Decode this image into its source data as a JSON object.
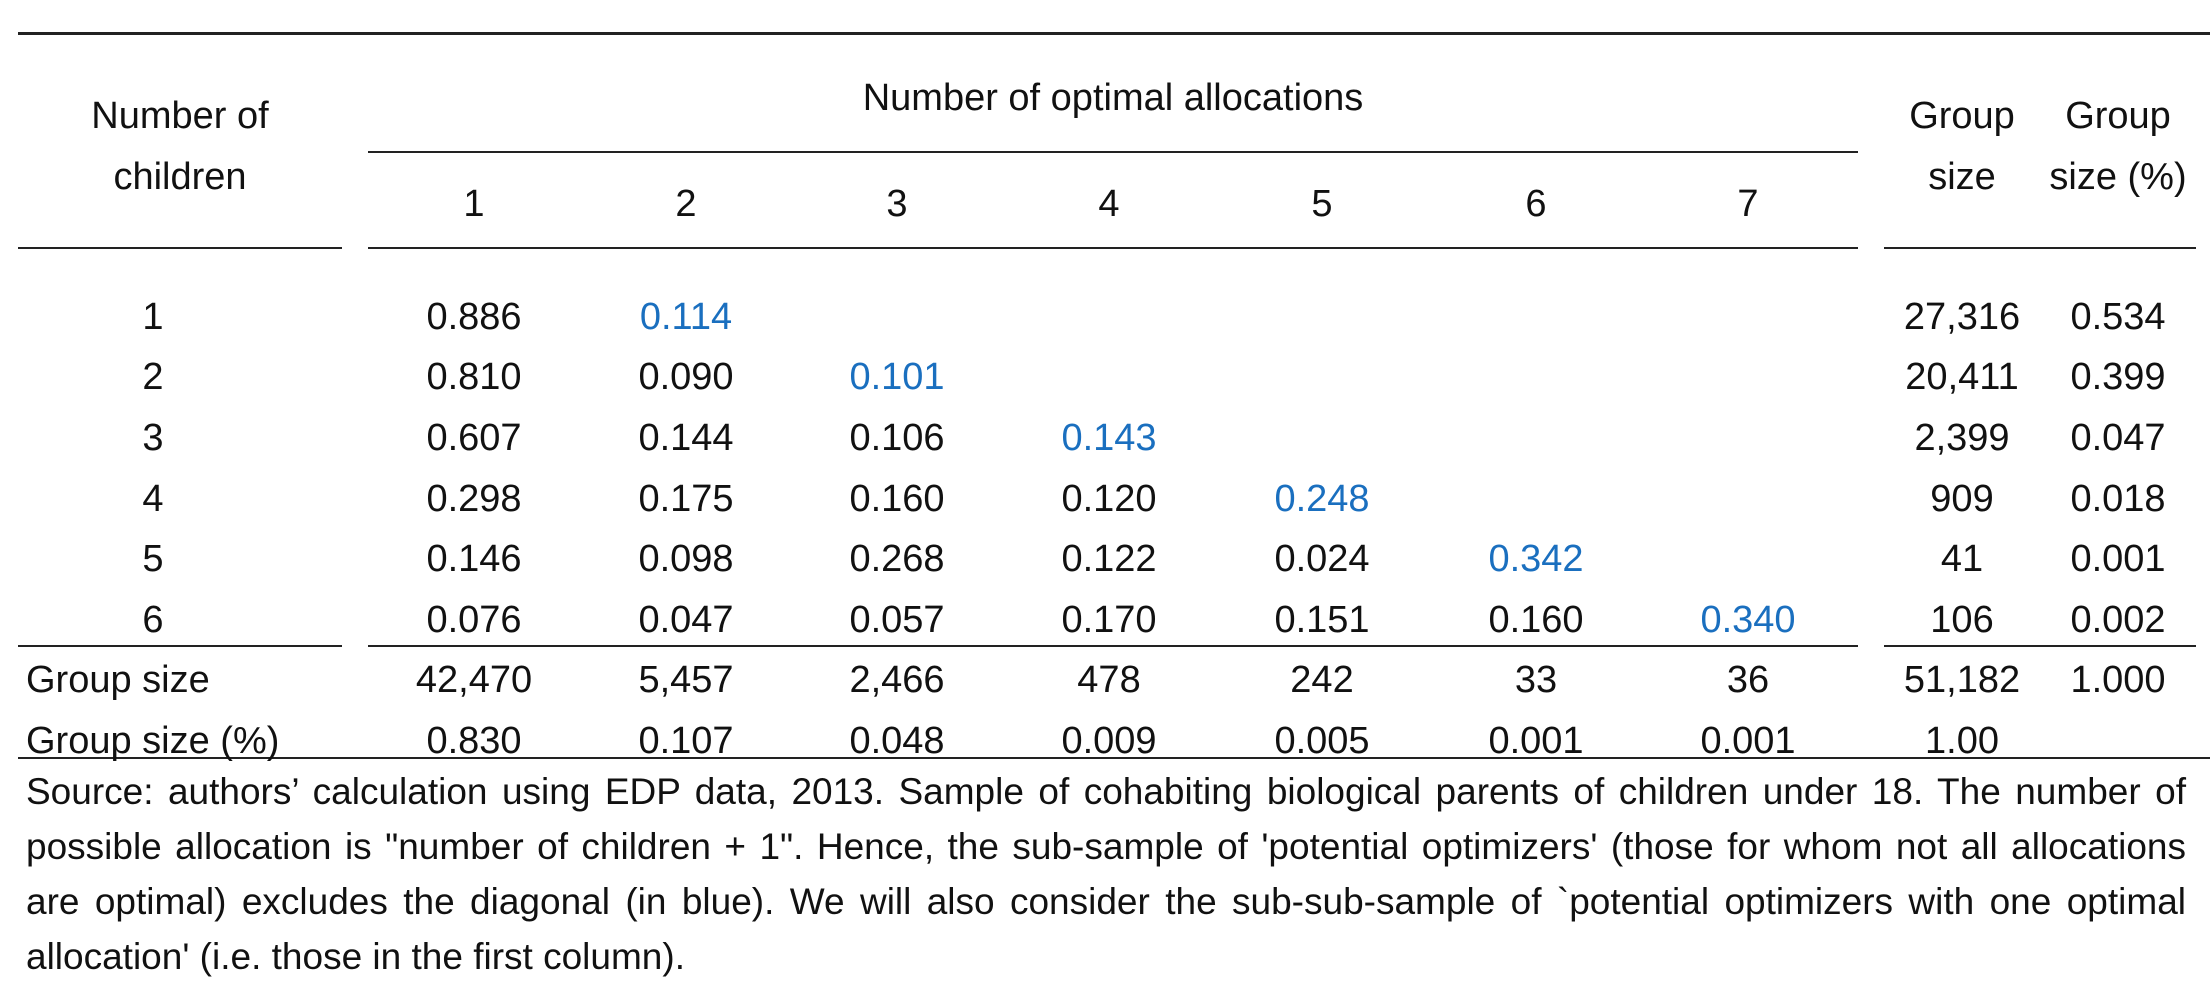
{
  "table": {
    "row_header": "Number of children",
    "row_header_line1": "Number of",
    "row_header_line2": "children",
    "spanning_header": "Number of optimal allocations",
    "column_numbers": [
      "1",
      "2",
      "3",
      "4",
      "5",
      "6",
      "7"
    ],
    "group_size_header_line1": "Group",
    "group_size_header_line2": "size",
    "group_pct_header_line1": "Group",
    "group_pct_header_line2": "size (%)",
    "rows": [
      {
        "label": "1",
        "cells": [
          "0.886",
          "0.114",
          "",
          "",
          "",
          "",
          ""
        ],
        "group_size": "27,316",
        "group_pct": "0.534",
        "diagonal_index": 1
      },
      {
        "label": "2",
        "cells": [
          "0.810",
          "0.090",
          "0.101",
          "",
          "",
          "",
          ""
        ],
        "group_size": "20,411",
        "group_pct": "0.399",
        "diagonal_index": 2
      },
      {
        "label": "3",
        "cells": [
          "0.607",
          "0.144",
          "0.106",
          "0.143",
          "",
          "",
          ""
        ],
        "group_size": "2,399",
        "group_pct": "0.047",
        "diagonal_index": 3
      },
      {
        "label": "4",
        "cells": [
          "0.298",
          "0.175",
          "0.160",
          "0.120",
          "0.248",
          "",
          ""
        ],
        "group_size": "909",
        "group_pct": "0.018",
        "diagonal_index": 4
      },
      {
        "label": "5",
        "cells": [
          "0.146",
          "0.098",
          "0.268",
          "0.122",
          "0.024",
          "0.342",
          ""
        ],
        "group_size": "41",
        "group_pct": "0.001",
        "diagonal_index": 5
      },
      {
        "label": "6",
        "cells": [
          "0.076",
          "0.047",
          "0.057",
          "0.170",
          "0.151",
          "0.160",
          "0.340"
        ],
        "group_size": "106",
        "group_pct": "0.002",
        "diagonal_index": 6
      }
    ],
    "footer_rows": [
      {
        "label": "Group size",
        "cells": [
          "42,470",
          "5,457",
          "2,466",
          "478",
          "242",
          "33",
          "36"
        ],
        "group_size": "51,182",
        "group_pct": "1.000"
      },
      {
        "label": "Group size (%)",
        "cells": [
          "0.830",
          "0.107",
          "0.048",
          "0.009",
          "0.005",
          "0.001",
          "0.001"
        ],
        "group_size": "1.00",
        "group_pct": ""
      }
    ],
    "highlight_color": "#1a6fbf"
  },
  "note": "Source: authors’ calculation using EDP data, 2013. Sample of cohabiting biological parents of children under 18. The number of possible allocation is \"number of children + 1\". Hence, the sub-sample of 'potential optimizers' (those for whom not all allocations are optimal) excludes the diagonal (in blue). We will also consider the sub-sub-sample of `potential optimizers with one optimal allocation' (i.e. those in the first column)."
}
